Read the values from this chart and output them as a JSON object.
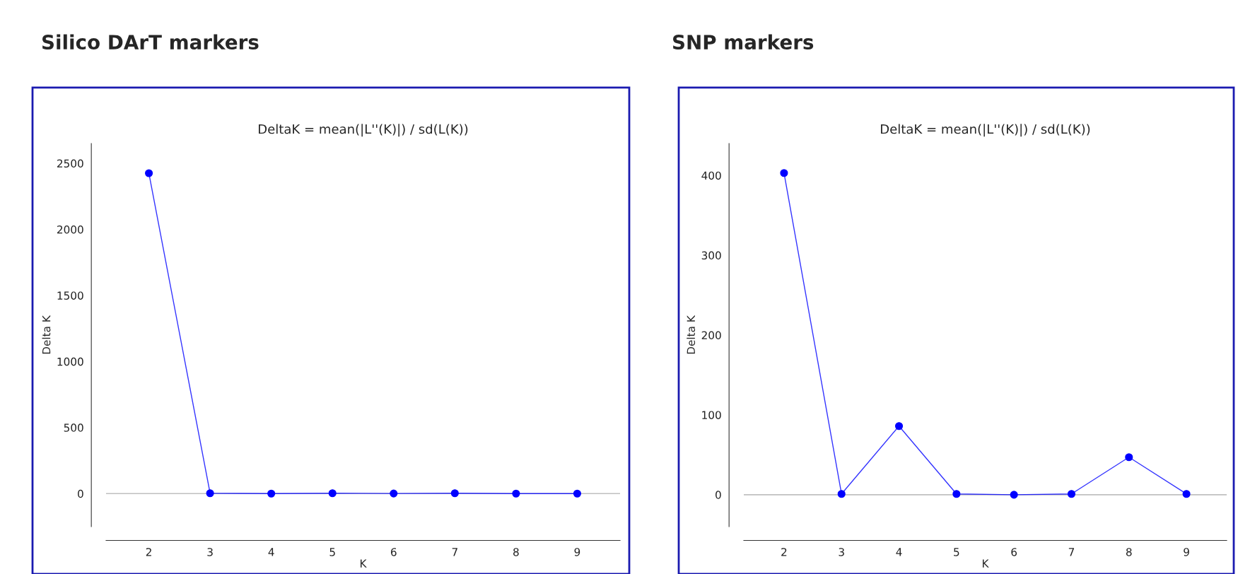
{
  "chart_data": [
    {
      "type": "line",
      "title": "Silico DArT markers",
      "subtitle": "DeltaK = mean(|L''(K)|) / sd(L(K))",
      "xlabel": "K",
      "ylabel": "Delta K",
      "x": [
        2,
        3,
        4,
        5,
        6,
        7,
        8,
        9
      ],
      "series": [
        {
          "color": "#0000ff",
          "values": [
            2425,
            3,
            0,
            3,
            1,
            3,
            0,
            0
          ]
        }
      ],
      "xlim": [
        1.3,
        9.7
      ],
      "xticks": [
        2,
        3,
        4,
        5,
        6,
        7,
        8,
        9
      ],
      "ylim": [
        -250,
        2650
      ],
      "yticks": [
        0,
        500,
        1000,
        1500,
        2000,
        2500
      ],
      "ref_lines": [
        {
          "axis": "y",
          "value": 0,
          "color": "#c0c0c0"
        }
      ],
      "marker": "circle",
      "line_style": "solid",
      "grid": false
    },
    {
      "type": "line",
      "title": "SNP markers",
      "subtitle": "DeltaK = mean(|L''(K)|) / sd(L(K))",
      "xlabel": "K",
      "ylabel": "Delta K",
      "x": [
        2,
        3,
        4,
        5,
        6,
        7,
        8,
        9
      ],
      "series": [
        {
          "color": "#0000ff",
          "values": [
            403,
            1,
            86,
            1,
            0,
            1,
            47,
            1
          ]
        }
      ],
      "xlim": [
        1.3,
        9.7
      ],
      "xticks": [
        2,
        3,
        4,
        5,
        6,
        7,
        8,
        9
      ],
      "ylim": [
        -40,
        440
      ],
      "yticks": [
        0,
        100,
        200,
        300,
        400
      ],
      "ref_lines": [
        {
          "axis": "y",
          "value": 0,
          "color": "#c0c0c0"
        }
      ],
      "marker": "circle",
      "line_style": "solid",
      "grid": false
    }
  ]
}
